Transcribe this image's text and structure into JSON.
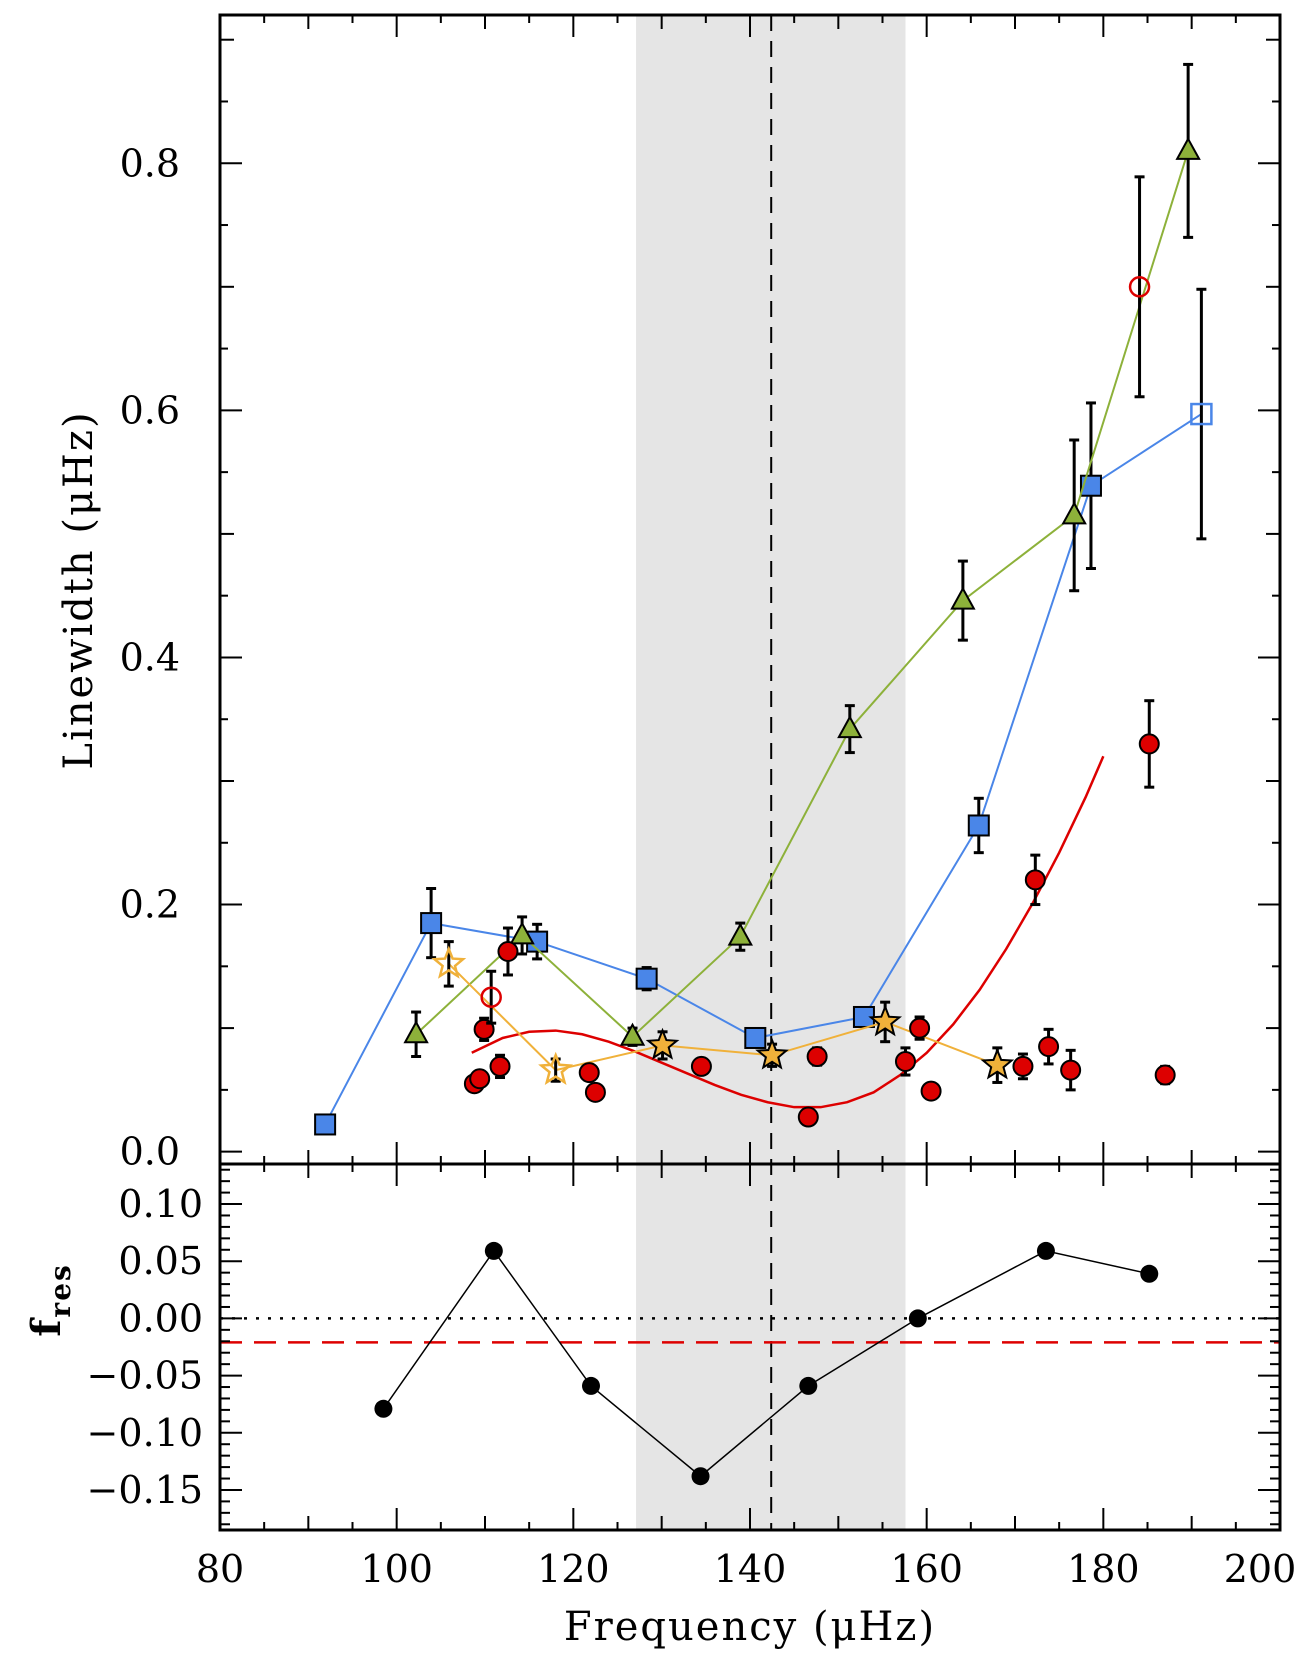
{
  "chart_data": [
    {
      "type": "scatter",
      "panel": "top",
      "xlabel": "Frequency (μHz)",
      "ylabel": "Linewidth (μHz)",
      "xlim": [
        80,
        200
      ],
      "ylim": [
        -0.01,
        0.92
      ],
      "x_ticks": [
        "80",
        "100",
        "120",
        "140",
        "160",
        "180",
        "200"
      ],
      "y_ticks": [
        {
          "value": 0.0,
          "label": "0.0"
        },
        {
          "value": 0.2,
          "label": "0.2"
        },
        {
          "value": 0.4,
          "label": "0.4"
        },
        {
          "value": 0.6,
          "label": "0.6"
        },
        {
          "value": 0.8,
          "label": "0.8"
        }
      ],
      "shaded_band": {
        "x0": 127.1,
        "x1": 157.6,
        "color": "#e5e5e5"
      },
      "vertical_dashed_line": {
        "x": 142.4
      },
      "series": [
        {
          "marker": "square",
          "color": "#4a86e8",
          "line": true,
          "points": [
            {
              "x": 91.9,
              "y": 0.022
            },
            {
              "x": 103.9,
              "y": 0.185,
              "err": 0.028
            },
            {
              "x": 115.9,
              "y": 0.17,
              "err": 0.014
            },
            {
              "x": 128.3,
              "y": 0.14,
              "err": 0.009
            },
            {
              "x": 140.6,
              "y": 0.092
            },
            {
              "x": 152.9,
              "y": 0.109
            },
            {
              "x": 165.9,
              "y": 0.264,
              "err": 0.022
            },
            {
              "x": 178.6,
              "y": 0.539,
              "err": 0.067
            },
            {
              "x": 191.1,
              "y": 0.597,
              "err": 0.101,
              "open": true
            }
          ]
        },
        {
          "marker": "triangle",
          "color": "#8db13a",
          "line": true,
          "points": [
            {
              "x": 102.2,
              "y": 0.095,
              "err": 0.018
            },
            {
              "x": 114.2,
              "y": 0.175,
              "err": 0.015
            },
            {
              "x": 126.7,
              "y": 0.093,
              "err": 0.007
            },
            {
              "x": 138.9,
              "y": 0.174,
              "err": 0.011
            },
            {
              "x": 151.3,
              "y": 0.342,
              "err": 0.019
            },
            {
              "x": 164.1,
              "y": 0.446,
              "err": 0.032
            },
            {
              "x": 176.7,
              "y": 0.515,
              "err": 0.061
            },
            {
              "x": 189.6,
              "y": 0.81,
              "err": 0.07
            }
          ]
        },
        {
          "marker": "star",
          "color": "#f0b13a",
          "line": true,
          "points": [
            {
              "x": 105.9,
              "y": 0.152,
              "err": 0.018,
              "open": true
            },
            {
              "x": 118.0,
              "y": 0.066,
              "err": 0.009,
              "open": true
            },
            {
              "x": 130.1,
              "y": 0.086,
              "err": 0.011
            },
            {
              "x": 142.5,
              "y": 0.078,
              "err": 0.009
            },
            {
              "x": 155.3,
              "y": 0.105,
              "err": 0.016
            },
            {
              "x": 168.0,
              "y": 0.07,
              "err": 0.014
            }
          ]
        },
        {
          "marker": "circle",
          "color": "#dd0000",
          "line": false,
          "points": [
            {
              "x": 108.8,
              "y": 0.055,
              "err": 0.006
            },
            {
              "x": 109.4,
              "y": 0.059,
              "err": 0.006
            },
            {
              "x": 109.9,
              "y": 0.099,
              "err": 0.009
            },
            {
              "x": 110.7,
              "y": 0.125,
              "err": 0.021,
              "open": true
            },
            {
              "x": 111.7,
              "y": 0.069,
              "err": 0.009
            },
            {
              "x": 112.6,
              "y": 0.162,
              "err": 0.019
            },
            {
              "x": 121.8,
              "y": 0.064,
              "err": 0.006
            },
            {
              "x": 122.5,
              "y": 0.048,
              "err": 0.004
            },
            {
              "x": 134.5,
              "y": 0.069,
              "err": 0.005
            },
            {
              "x": 146.6,
              "y": 0.028,
              "err": 0.003
            },
            {
              "x": 147.6,
              "y": 0.077,
              "err": 0.007
            },
            {
              "x": 157.6,
              "y": 0.073,
              "err": 0.011
            },
            {
              "x": 159.2,
              "y": 0.1,
              "err": 0.009
            },
            {
              "x": 160.5,
              "y": 0.049,
              "err": 0.005
            },
            {
              "x": 170.9,
              "y": 0.069,
              "err": 0.01
            },
            {
              "x": 172.3,
              "y": 0.22,
              "err": 0.02
            },
            {
              "x": 173.8,
              "y": 0.085,
              "err": 0.014
            },
            {
              "x": 176.3,
              "y": 0.066,
              "err": 0.016
            },
            {
              "x": 184.1,
              "y": 0.7,
              "err": 0.089,
              "open": true
            },
            {
              "x": 185.2,
              "y": 0.33,
              "err": 0.035
            },
            {
              "x": 187.0,
              "y": 0.062,
              "err": 0.007
            }
          ]
        }
      ],
      "fit_curve": {
        "color": "#dd0000",
        "points": [
          [
            108.5,
            0.08
          ],
          [
            112,
            0.092
          ],
          [
            115,
            0.097
          ],
          [
            118,
            0.098
          ],
          [
            121,
            0.095
          ],
          [
            124,
            0.089
          ],
          [
            127,
            0.081
          ],
          [
            130,
            0.072
          ],
          [
            133,
            0.063
          ],
          [
            136,
            0.054
          ],
          [
            139,
            0.046
          ],
          [
            142,
            0.04
          ],
          [
            145,
            0.036
          ],
          [
            148,
            0.036
          ],
          [
            151,
            0.04
          ],
          [
            154,
            0.048
          ],
          [
            157,
            0.062
          ],
          [
            160,
            0.08
          ],
          [
            163,
            0.103
          ],
          [
            166,
            0.131
          ],
          [
            169,
            0.164
          ],
          [
            172,
            0.201
          ],
          [
            175,
            0.242
          ],
          [
            178,
            0.287
          ],
          [
            180,
            0.32
          ]
        ]
      }
    },
    {
      "type": "line",
      "panel": "bottom",
      "xlabel": "Frequency (μHz)",
      "ylabel": "f",
      "ylabel_sub": "res",
      "xlim": [
        80,
        200
      ],
      "ylim": [
        -0.185,
        0.135
      ],
      "y_ticks": [
        {
          "value": 0.1,
          "label": "0.10"
        },
        {
          "value": 0.05,
          "label": "0.05"
        },
        {
          "value": 0.0,
          "label": "0.00"
        },
        {
          "value": -0.05,
          "label": "−0.05"
        },
        {
          "value": -0.1,
          "label": "−0.10"
        },
        {
          "value": -0.15,
          "label": "−0.15"
        }
      ],
      "x": [
        98.5,
        111.0,
        122.0,
        134.4,
        146.6,
        159.0,
        173.5,
        185.2
      ],
      "y": [
        -0.079,
        0.059,
        -0.059,
        -0.138,
        -0.059,
        0.0,
        0.059,
        0.039
      ],
      "reference_lines": [
        {
          "y": 0.0,
          "style": "dotted",
          "color": "#000000"
        },
        {
          "y": -0.021,
          "style": "dashed",
          "color": "#dd0000"
        }
      ]
    }
  ]
}
